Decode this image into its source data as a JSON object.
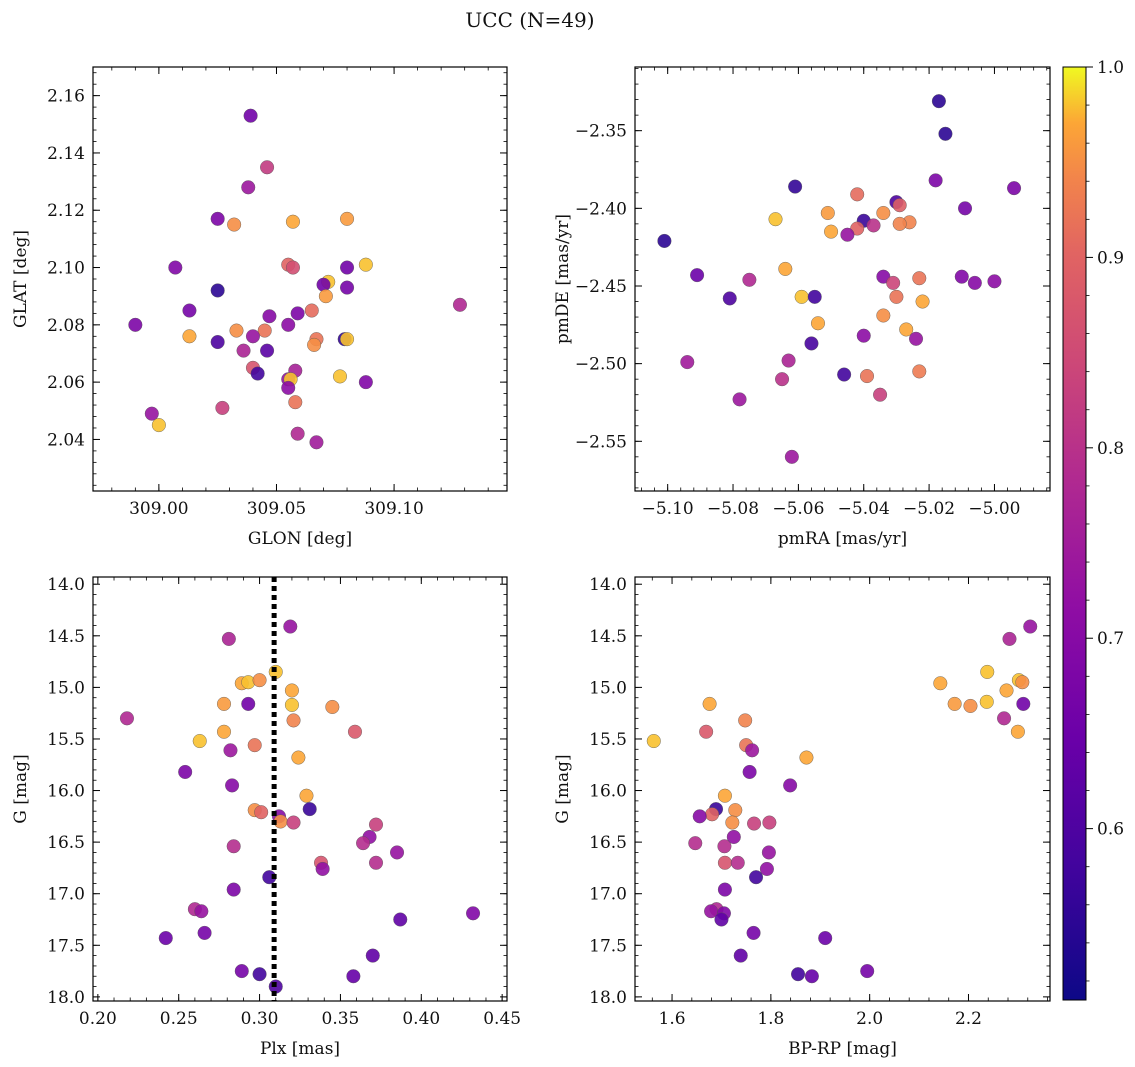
{
  "figure": {
    "title": "UCC (N=49)",
    "background": "#ffffff"
  },
  "colorbar": {
    "cmap": "plasma",
    "vmin": 0.51,
    "vmax": 1.0,
    "ticks": [
      0.6,
      0.7,
      0.8,
      0.9,
      1.0
    ],
    "tick_labels": [
      "0.6",
      "0.7",
      "0.8",
      "0.9",
      "1.0"
    ]
  },
  "chart_data": [
    {
      "type": "scatter",
      "id": "glon-glat",
      "xlabel": "GLON [deg]",
      "ylabel": "GLAT [deg]",
      "xlim": [
        308.972,
        309.148
      ],
      "ylim": [
        2.022,
        2.17
      ],
      "xticks": [
        309.0,
        309.05,
        309.1
      ],
      "xtick_labels": [
        "309.00",
        "309.05",
        "309.10"
      ],
      "yticks": [
        2.04,
        2.06,
        2.08,
        2.1,
        2.12,
        2.14,
        2.16
      ],
      "ytick_labels": [
        "2.04",
        "2.06",
        "2.08",
        "2.10",
        "2.12",
        "2.14",
        "2.16"
      ],
      "invert_y": false,
      "points": [
        [
          309.039,
          2.153,
          0.66
        ],
        [
          309.046,
          2.135,
          0.82
        ],
        [
          309.038,
          2.128,
          0.74
        ],
        [
          309.025,
          2.117,
          0.68
        ],
        [
          309.032,
          2.115,
          0.95
        ],
        [
          309.057,
          2.116,
          0.97
        ],
        [
          309.08,
          2.117,
          0.96
        ],
        [
          309.007,
          2.1,
          0.69
        ],
        [
          309.055,
          2.101,
          0.9
        ],
        [
          309.057,
          2.1,
          0.86
        ],
        [
          309.08,
          2.1,
          0.66
        ],
        [
          309.088,
          2.101,
          0.98
        ],
        [
          309.072,
          2.095,
          0.98
        ],
        [
          309.07,
          2.094,
          0.66
        ],
        [
          309.025,
          2.092,
          0.55
        ],
        [
          309.08,
          2.093,
          0.67
        ],
        [
          309.071,
          2.09,
          0.96
        ],
        [
          309.013,
          2.085,
          0.67
        ],
        [
          309.065,
          2.085,
          0.91
        ],
        [
          309.059,
          2.084,
          0.68
        ],
        [
          309.047,
          2.083,
          0.7
        ],
        [
          308.99,
          2.08,
          0.68
        ],
        [
          309.055,
          2.08,
          0.71
        ],
        [
          309.013,
          2.076,
          0.97
        ],
        [
          309.033,
          2.078,
          0.95
        ],
        [
          309.045,
          2.078,
          0.92
        ],
        [
          309.04,
          2.076,
          0.73
        ],
        [
          309.025,
          2.074,
          0.6
        ],
        [
          309.079,
          2.075,
          0.56
        ],
        [
          309.08,
          2.075,
          0.98
        ],
        [
          309.067,
          2.075,
          0.92
        ],
        [
          309.066,
          2.073,
          0.95
        ],
        [
          309.046,
          2.071,
          0.62
        ],
        [
          309.036,
          2.071,
          0.77
        ],
        [
          309.058,
          2.064,
          0.76
        ],
        [
          309.04,
          2.065,
          0.87
        ],
        [
          309.042,
          2.063,
          0.58
        ],
        [
          309.055,
          2.061,
          0.72
        ],
        [
          309.056,
          2.061,
          0.98
        ],
        [
          309.077,
          2.062,
          0.98
        ],
        [
          309.055,
          2.058,
          0.71
        ],
        [
          309.088,
          2.06,
          0.69
        ],
        [
          309.058,
          2.053,
          0.92
        ],
        [
          309.027,
          2.051,
          0.83
        ],
        [
          308.997,
          2.049,
          0.73
        ],
        [
          309.0,
          2.045,
          0.98
        ],
        [
          309.059,
          2.042,
          0.78
        ],
        [
          309.067,
          2.039,
          0.75
        ],
        [
          309.128,
          2.087,
          0.78
        ]
      ]
    },
    {
      "type": "scatter",
      "id": "pmra-pmde",
      "xlabel": "pmRA [mas/yr]",
      "ylabel": "pmDE [mas/yr]",
      "xlim": [
        -5.11,
        -4.983
      ],
      "ylim": [
        -2.582,
        -2.309
      ],
      "xticks": [
        -5.1,
        -5.08,
        -5.06,
        -5.04,
        -5.02,
        -5.0
      ],
      "xtick_labels": [
        "−5.10",
        "−5.08",
        "−5.06",
        "−5.04",
        "−5.02",
        "−5.00"
      ],
      "yticks": [
        -2.55,
        -2.5,
        -2.45,
        -2.4,
        -2.35
      ],
      "ytick_labels": [
        "−2.55",
        "−2.50",
        "−2.45",
        "−2.40",
        "−2.35"
      ],
      "invert_y": false,
      "points": [
        [
          -5.017,
          -2.331,
          0.55
        ],
        [
          -5.061,
          -2.386,
          0.56
        ],
        [
          -5.018,
          -2.382,
          0.68
        ],
        [
          -4.994,
          -2.387,
          0.68
        ],
        [
          -5.042,
          -2.391,
          0.91
        ],
        [
          -5.03,
          -2.396,
          0.6
        ],
        [
          -5.029,
          -2.398,
          0.89
        ],
        [
          -5.067,
          -2.407,
          0.98
        ],
        [
          -5.051,
          -2.403,
          0.96
        ],
        [
          -5.034,
          -2.403,
          0.95
        ],
        [
          -5.04,
          -2.408,
          0.57
        ],
        [
          -5.009,
          -2.4,
          0.67
        ],
        [
          -5.026,
          -2.409,
          0.94
        ],
        [
          -5.029,
          -2.41,
          0.94
        ],
        [
          -5.042,
          -2.413,
          0.9
        ],
        [
          -5.037,
          -2.411,
          0.8
        ],
        [
          -5.05,
          -2.415,
          0.97
        ],
        [
          -5.045,
          -2.417,
          0.73
        ],
        [
          -5.101,
          -2.421,
          0.55
        ],
        [
          -5.064,
          -2.439,
          0.97
        ],
        [
          -5.091,
          -2.443,
          0.65
        ],
        [
          -5.075,
          -2.446,
          0.78
        ],
        [
          -5.034,
          -2.444,
          0.7
        ],
        [
          -5.023,
          -2.445,
          0.92
        ],
        [
          -5.01,
          -2.444,
          0.69
        ],
        [
          -5.006,
          -2.448,
          0.7
        ],
        [
          -5.0,
          -2.447,
          0.71
        ],
        [
          -5.031,
          -2.448,
          0.84
        ],
        [
          -5.081,
          -2.458,
          0.6
        ],
        [
          -5.059,
          -2.457,
          0.98
        ],
        [
          -5.055,
          -2.457,
          0.58
        ],
        [
          -5.03,
          -2.457,
          0.92
        ],
        [
          -5.022,
          -2.46,
          0.97
        ],
        [
          -5.034,
          -2.469,
          0.95
        ],
        [
          -5.054,
          -2.474,
          0.97
        ],
        [
          -5.027,
          -2.478,
          0.97
        ],
        [
          -5.04,
          -2.482,
          0.71
        ],
        [
          -5.024,
          -2.484,
          0.73
        ],
        [
          -5.056,
          -2.487,
          0.59
        ],
        [
          -5.094,
          -2.499,
          0.75
        ],
        [
          -5.063,
          -2.498,
          0.77
        ],
        [
          -5.046,
          -2.507,
          0.58
        ],
        [
          -5.039,
          -2.508,
          0.92
        ],
        [
          -5.023,
          -2.505,
          0.93
        ],
        [
          -5.065,
          -2.51,
          0.8
        ],
        [
          -5.035,
          -2.52,
          0.83
        ],
        [
          -5.078,
          -2.523,
          0.74
        ],
        [
          -5.062,
          -2.56,
          0.74
        ],
        [
          -5.015,
          -2.352,
          0.55
        ]
      ]
    },
    {
      "type": "scatter",
      "id": "plx-g",
      "xlabel": "Plx [mas]",
      "ylabel": "G [mag]",
      "xlim": [
        0.197,
        0.453
      ],
      "ylim": [
        13.93,
        18.04
      ],
      "xticks": [
        0.2,
        0.25,
        0.3,
        0.35,
        0.4,
        0.45
      ],
      "xtick_labels": [
        "0.20",
        "0.25",
        "0.30",
        "0.35",
        "0.40",
        "0.45"
      ],
      "yticks": [
        14.0,
        14.5,
        15.0,
        15.5,
        16.0,
        16.5,
        17.0,
        17.5,
        18.0
      ],
      "ytick_labels": [
        "14.0",
        "14.5",
        "15.0",
        "15.5",
        "16.0",
        "16.5",
        "17.0",
        "17.5",
        "18.0"
      ],
      "invert_y": true,
      "vline": {
        "x": 0.309,
        "style": "dotted",
        "color": "#000000"
      },
      "points": [
        [
          0.319,
          14.41,
          0.73
        ],
        [
          0.281,
          14.53,
          0.77
        ],
        [
          0.31,
          14.85,
          0.98
        ],
        [
          0.289,
          14.96,
          0.97
        ],
        [
          0.293,
          14.95,
          0.98
        ],
        [
          0.3,
          14.93,
          0.95
        ],
        [
          0.32,
          15.03,
          0.97
        ],
        [
          0.278,
          15.16,
          0.96
        ],
        [
          0.293,
          15.16,
          0.66
        ],
        [
          0.32,
          15.17,
          0.98
        ],
        [
          0.345,
          15.19,
          0.95
        ],
        [
          0.218,
          15.3,
          0.78
        ],
        [
          0.321,
          15.32,
          0.94
        ],
        [
          0.278,
          15.43,
          0.97
        ],
        [
          0.359,
          15.43,
          0.88
        ],
        [
          0.263,
          15.52,
          0.98
        ],
        [
          0.297,
          15.56,
          0.92
        ],
        [
          0.282,
          15.61,
          0.74
        ],
        [
          0.324,
          15.68,
          0.97
        ],
        [
          0.254,
          15.82,
          0.68
        ],
        [
          0.283,
          15.95,
          0.7
        ],
        [
          0.329,
          16.05,
          0.97
        ],
        [
          0.331,
          16.18,
          0.57
        ],
        [
          0.297,
          16.19,
          0.95
        ],
        [
          0.301,
          16.21,
          0.9
        ],
        [
          0.312,
          16.25,
          0.7
        ],
        [
          0.313,
          16.3,
          0.95
        ],
        [
          0.321,
          16.31,
          0.83
        ],
        [
          0.372,
          16.33,
          0.83
        ],
        [
          0.368,
          16.45,
          0.72
        ],
        [
          0.364,
          16.51,
          0.79
        ],
        [
          0.284,
          16.54,
          0.79
        ],
        [
          0.385,
          16.6,
          0.73
        ],
        [
          0.338,
          16.7,
          0.87
        ],
        [
          0.372,
          16.7,
          0.79
        ],
        [
          0.339,
          16.76,
          0.72
        ],
        [
          0.306,
          16.84,
          0.58
        ],
        [
          0.284,
          16.96,
          0.68
        ],
        [
          0.26,
          17.15,
          0.78
        ],
        [
          0.264,
          17.17,
          0.73
        ],
        [
          0.432,
          17.19,
          0.69
        ],
        [
          0.387,
          17.25,
          0.63
        ],
        [
          0.266,
          17.38,
          0.67
        ],
        [
          0.242,
          17.43,
          0.65
        ],
        [
          0.37,
          17.6,
          0.63
        ],
        [
          0.289,
          17.75,
          0.67
        ],
        [
          0.3,
          17.78,
          0.58
        ],
        [
          0.358,
          17.8,
          0.64
        ],
        [
          0.31,
          17.9,
          0.6
        ]
      ]
    },
    {
      "type": "scatter",
      "id": "bprp-g",
      "xlabel": "BP-RP [mag]",
      "ylabel": "G [mag]",
      "xlim": [
        1.525,
        2.365
      ],
      "ylim": [
        13.93,
        18.04
      ],
      "xticks": [
        1.6,
        1.8,
        2.0,
        2.2
      ],
      "xtick_labels": [
        "1.6",
        "1.8",
        "2.0",
        "2.2"
      ],
      "yticks": [
        14.0,
        14.5,
        15.0,
        15.5,
        16.0,
        16.5,
        17.0,
        17.5,
        18.0
      ],
      "ytick_labels": [
        "14.0",
        "14.5",
        "15.0",
        "15.5",
        "16.0",
        "16.5",
        "17.0",
        "17.5",
        "18.0"
      ],
      "invert_y": true,
      "points": [
        [
          2.325,
          14.41,
          0.73
        ],
        [
          2.283,
          14.53,
          0.77
        ],
        [
          2.238,
          14.85,
          0.98
        ],
        [
          2.143,
          14.96,
          0.97
        ],
        [
          2.302,
          14.93,
          0.98
        ],
        [
          2.309,
          14.95,
          0.95
        ],
        [
          2.277,
          15.03,
          0.97
        ],
        [
          2.172,
          15.16,
          0.96
        ],
        [
          2.204,
          15.18,
          0.95
        ],
        [
          2.237,
          15.14,
          0.98
        ],
        [
          2.311,
          15.16,
          0.66
        ],
        [
          1.676,
          15.16,
          0.97
        ],
        [
          2.272,
          15.3,
          0.78
        ],
        [
          1.748,
          15.32,
          0.94
        ],
        [
          2.3,
          15.43,
          0.97
        ],
        [
          1.669,
          15.43,
          0.88
        ],
        [
          1.563,
          15.52,
          0.98
        ],
        [
          1.75,
          15.56,
          0.92
        ],
        [
          1.762,
          15.61,
          0.74
        ],
        [
          1.872,
          15.68,
          0.97
        ],
        [
          1.757,
          15.82,
          0.68
        ],
        [
          1.839,
          15.95,
          0.7
        ],
        [
          1.707,
          16.05,
          0.97
        ],
        [
          1.689,
          16.18,
          0.57
        ],
        [
          1.728,
          16.19,
          0.95
        ],
        [
          1.681,
          16.23,
          0.9
        ],
        [
          1.656,
          16.25,
          0.7
        ],
        [
          1.722,
          16.31,
          0.95
        ],
        [
          1.766,
          16.32,
          0.83
        ],
        [
          1.797,
          16.31,
          0.83
        ],
        [
          1.725,
          16.45,
          0.72
        ],
        [
          1.647,
          16.51,
          0.79
        ],
        [
          1.706,
          16.54,
          0.79
        ],
        [
          1.796,
          16.6,
          0.73
        ],
        [
          1.707,
          16.7,
          0.87
        ],
        [
          1.733,
          16.7,
          0.79
        ],
        [
          1.792,
          16.76,
          0.72
        ],
        [
          1.77,
          16.84,
          0.58
        ],
        [
          1.707,
          16.96,
          0.68
        ],
        [
          1.69,
          17.15,
          0.78
        ],
        [
          1.679,
          17.17,
          0.73
        ],
        [
          1.705,
          17.19,
          0.69
        ],
        [
          1.7,
          17.25,
          0.63
        ],
        [
          1.765,
          17.38,
          0.67
        ],
        [
          1.91,
          17.43,
          0.65
        ],
        [
          1.739,
          17.6,
          0.63
        ],
        [
          1.855,
          17.78,
          0.58
        ],
        [
          1.883,
          17.8,
          0.64
        ],
        [
          1.995,
          17.75,
          0.67
        ]
      ]
    }
  ]
}
